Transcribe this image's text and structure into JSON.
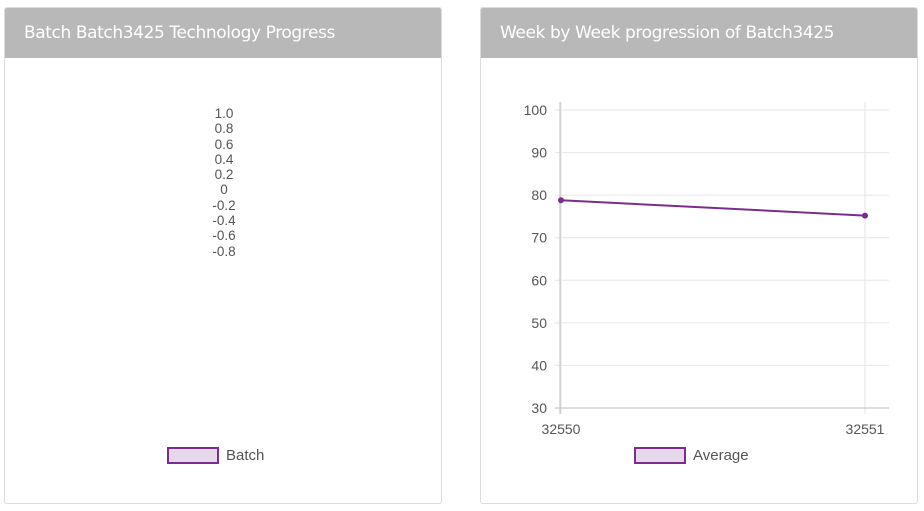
{
  "left_panel": {
    "title": "Batch Batch3425 Technology Progress",
    "y_ticks": [
      "1.0",
      "0.8",
      "0.6",
      "0.4",
      "0.2",
      "0",
      "-0.2",
      "-0.4",
      "-0.6",
      "-0.8"
    ],
    "legend_label": "Batch"
  },
  "right_panel": {
    "title": "Week by Week progression of Batch3425",
    "legend_label": "Average"
  },
  "colors": {
    "series": "#7b2d8e",
    "swatch_fill": "#e6d7ea",
    "header_bg": "#b8b8b8"
  },
  "chart_data": [
    {
      "type": "bar",
      "title": "Batch Batch3425 Technology Progress",
      "categories": [],
      "series": [
        {
          "name": "Batch",
          "values": []
        }
      ],
      "y_ticks": [
        "1.0",
        "0.8",
        "0.6",
        "0.4",
        "0.2",
        "0",
        "-0.2",
        "-0.4",
        "-0.6",
        "-0.8"
      ],
      "legend": "bottom"
    },
    {
      "type": "line",
      "title": "Week by Week progression of Batch3425",
      "x": [
        "32550",
        "32551"
      ],
      "series": [
        {
          "name": "Average",
          "values": [
            78.8,
            75.2
          ]
        }
      ],
      "ylim": [
        30,
        100
      ],
      "y_ticks": [
        30,
        40,
        50,
        60,
        70,
        80,
        90,
        100
      ],
      "grid": true,
      "legend": "bottom"
    }
  ]
}
